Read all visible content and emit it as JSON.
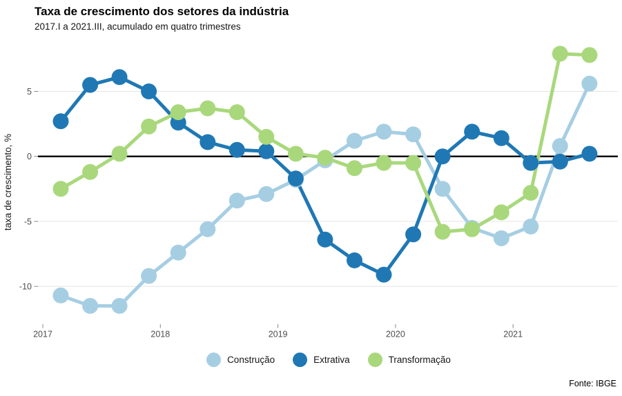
{
  "chart_data": {
    "type": "line",
    "title": "Taxa de crescimento dos setores da indústria",
    "subtitle": "2017.I a 2021.III, acumulado em quatro trimestres",
    "ylabel": "taxa de crescimento, %",
    "xlabel": "",
    "x": [
      "2017.I",
      "2017.II",
      "2017.III",
      "2017.IV",
      "2018.I",
      "2018.II",
      "2018.III",
      "2018.IV",
      "2019.I",
      "2019.II",
      "2019.III",
      "2019.IV",
      "2020.I",
      "2020.II",
      "2020.III",
      "2020.IV",
      "2021.I",
      "2021.II",
      "2021.III"
    ],
    "x_tick_labels": [
      "2017",
      "2018",
      "2019",
      "2020",
      "2021"
    ],
    "y_ticks": [
      5,
      0,
      -5,
      -10
    ],
    "ylim": [
      -12.9,
      9.0
    ],
    "grid": "horizontal-only",
    "zero_line": true,
    "zero_line_color": "#000000",
    "gridline_color": "#e4e4e4",
    "legend_position": "bottom",
    "series": [
      {
        "name": "Construção",
        "color": "#a6cee3",
        "values": [
          -10.7,
          -11.5,
          -11.5,
          -9.2,
          -7.4,
          -5.6,
          -3.4,
          -2.9,
          -1.8,
          -0.3,
          1.2,
          1.9,
          1.7,
          -2.5,
          -5.5,
          -6.3,
          -5.4,
          0.8,
          5.6
        ]
      },
      {
        "name": "Extrativa",
        "color": "#1f78b4",
        "values": [
          2.7,
          5.5,
          6.1,
          5.0,
          2.6,
          1.1,
          0.5,
          0.4,
          -1.7,
          -6.4,
          -8.0,
          -9.1,
          -6.0,
          0.0,
          1.9,
          1.4,
          -0.5,
          -0.4,
          0.2
        ]
      },
      {
        "name": "Transformação",
        "color": "#a9d87c",
        "values": [
          -2.5,
          -1.2,
          0.2,
          2.3,
          3.4,
          3.7,
          3.4,
          1.5,
          0.2,
          -0.1,
          -0.9,
          -0.5,
          -0.5,
          -5.8,
          -5.6,
          -4.3,
          -2.8,
          7.9,
          7.8
        ]
      }
    ],
    "source": "Fonte: IBGE"
  }
}
